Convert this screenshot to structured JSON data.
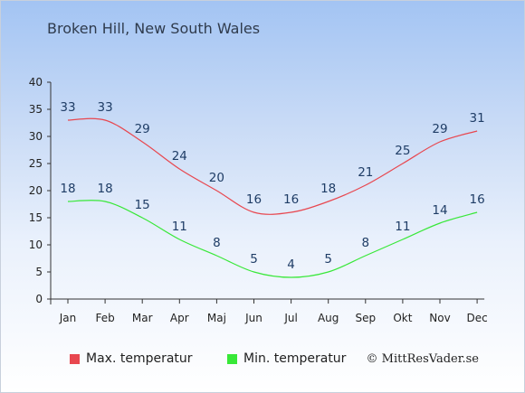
{
  "chart_data": {
    "type": "line",
    "title": "Broken Hill, New South Wales",
    "categories": [
      "Jan",
      "Feb",
      "Mar",
      "Apr",
      "Maj",
      "Jun",
      "Jul",
      "Aug",
      "Sep",
      "Okt",
      "Nov",
      "Dec"
    ],
    "series": [
      {
        "name": "Max. temperatur",
        "color": "#e8474f",
        "values": [
          33,
          33,
          29,
          24,
          20,
          16,
          16,
          18,
          21,
          25,
          29,
          31
        ]
      },
      {
        "name": "Min. temperatur",
        "color": "#38e838",
        "values": [
          18,
          18,
          15,
          11,
          8,
          5,
          4,
          5,
          8,
          11,
          14,
          16
        ]
      }
    ],
    "ylim": [
      0,
      40
    ],
    "yticks": [
      0,
      5,
      10,
      15,
      20,
      25,
      30,
      35,
      40
    ],
    "grid": false,
    "legend_position": "bottom",
    "label_color": "#1f3d66"
  },
  "credit": "© MittResVader.se"
}
